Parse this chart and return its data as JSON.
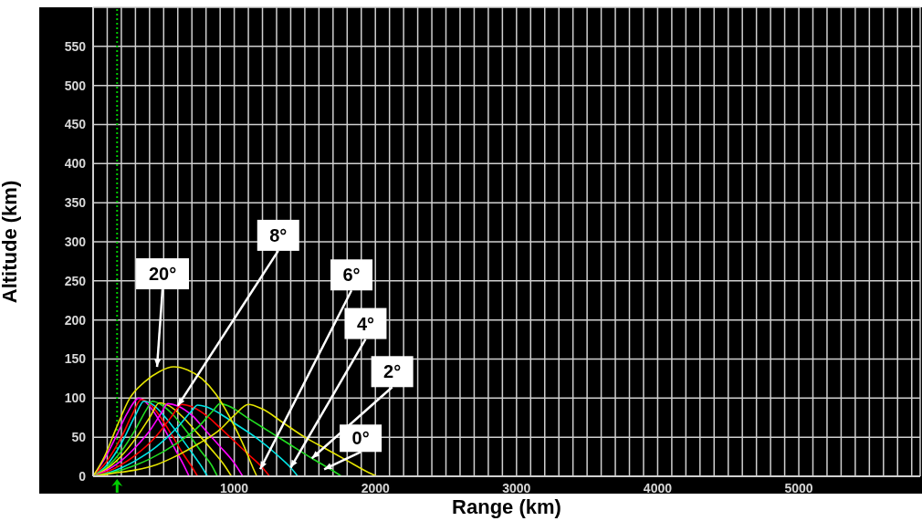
{
  "chart_data": {
    "type": "line",
    "xlabel": "Range (km)",
    "ylabel": "Altitude (km)",
    "xlim": [
      0,
      5860
    ],
    "ylim": [
      0,
      600
    ],
    "xticks": [
      {
        "value": 0,
        "label": null
      },
      {
        "value": 100,
        "label": null
      },
      {
        "value": 200,
        "label": null
      },
      {
        "value": 300,
        "label": null
      },
      {
        "value": 400,
        "label": null
      },
      {
        "value": 500,
        "label": null
      },
      {
        "value": 600,
        "label": null
      },
      {
        "value": 700,
        "label": null
      },
      {
        "value": 800,
        "label": null
      },
      {
        "value": 900,
        "label": null
      },
      1000,
      {
        "value": 1100,
        "label": null
      },
      {
        "value": 1200,
        "label": null
      },
      {
        "value": 1300,
        "label": null
      },
      {
        "value": 1400,
        "label": null
      },
      {
        "value": 1500,
        "label": null
      },
      {
        "value": 1600,
        "label": null
      },
      {
        "value": 1700,
        "label": null
      },
      {
        "value": 1800,
        "label": null
      },
      {
        "value": 1900,
        "label": null
      },
      2000,
      {
        "value": 2100,
        "label": null
      },
      {
        "value": 2200,
        "label": null
      },
      {
        "value": 2300,
        "label": null
      },
      {
        "value": 2400,
        "label": null
      },
      {
        "value": 2500,
        "label": null
      },
      {
        "value": 2600,
        "label": null
      },
      {
        "value": 2700,
        "label": null
      },
      {
        "value": 2800,
        "label": null
      },
      {
        "value": 2900,
        "label": null
      },
      3000,
      {
        "value": 3100,
        "label": null
      },
      {
        "value": 3200,
        "label": null
      },
      {
        "value": 3300,
        "label": null
      },
      {
        "value": 3400,
        "label": null
      },
      {
        "value": 3500,
        "label": null
      },
      {
        "value": 3600,
        "label": null
      },
      {
        "value": 3700,
        "label": null
      },
      {
        "value": 3800,
        "label": null
      },
      {
        "value": 3900,
        "label": null
      },
      4000,
      {
        "value": 4100,
        "label": null
      },
      {
        "value": 4200,
        "label": null
      },
      {
        "value": 4300,
        "label": null
      },
      {
        "value": 4400,
        "label": null
      },
      {
        "value": 4500,
        "label": null
      },
      {
        "value": 4600,
        "label": null
      },
      {
        "value": 4700,
        "label": null
      },
      {
        "value": 4800,
        "label": null
      },
      {
        "value": 4900,
        "label": null
      },
      5000,
      {
        "value": 5100,
        "label": null
      },
      {
        "value": 5200,
        "label": null
      },
      {
        "value": 5300,
        "label": null
      },
      {
        "value": 5400,
        "label": null
      },
      {
        "value": 5500,
        "label": null
      },
      {
        "value": 5600,
        "label": null
      },
      {
        "value": 5700,
        "label": null
      },
      {
        "value": 5800,
        "label": null
      }
    ],
    "yticks": [
      0,
      50,
      100,
      150,
      200,
      250,
      300,
      350,
      400,
      450,
      500,
      550
    ],
    "grid": true,
    "marker": "none",
    "line_style": "solid",
    "series": [
      {
        "color": "#ff00ff",
        "x": [
          0,
          80,
          160,
          240,
          300,
          322,
          360,
          420,
          500,
          580,
          640,
          680
        ],
        "values": [
          0,
          22,
          50,
          80,
          97,
          100,
          97,
          85,
          62,
          35,
          15,
          0
        ]
      },
      {
        "color": "#ff0000",
        "x": [
          0,
          100,
          200,
          280,
          340,
          400,
          480,
          560,
          640,
          700,
          740
        ],
        "values": [
          0,
          20,
          50,
          80,
          98,
          93,
          75,
          52,
          28,
          12,
          0
        ]
      },
      {
        "color": "#00e5e5",
        "x": [
          0,
          100,
          200,
          300,
          360,
          420,
          500,
          600,
          700,
          770,
          810
        ],
        "values": [
          0,
          15,
          42,
          78,
          96,
          92,
          78,
          55,
          30,
          12,
          0
        ]
      },
      {
        "color": "#22dd22",
        "x": [
          0,
          100,
          200,
          300,
          380,
          420,
          480,
          560,
          660,
          760,
          840,
          880
        ],
        "values": [
          0,
          12,
          32,
          60,
          86,
          96,
          92,
          80,
          58,
          33,
          14,
          0
        ]
      },
      {
        "color": "#e5e500",
        "x": [
          0,
          100,
          200,
          300,
          400,
          470,
          540,
          640,
          740,
          840,
          930,
          980
        ],
        "values": [
          0,
          10,
          26,
          48,
          75,
          94,
          90,
          75,
          55,
          34,
          14,
          0
        ]
      },
      {
        "color": "#ff00ff",
        "x": [
          0,
          100,
          200,
          300,
          400,
          480,
          530,
          600,
          700,
          800,
          900,
          1000,
          1060
        ],
        "values": [
          0,
          8,
          20,
          37,
          58,
          80,
          93,
          90,
          78,
          58,
          38,
          17,
          0
        ]
      },
      {
        "color": "#ff0000",
        "x": [
          0,
          150,
          300,
          450,
          550,
          630,
          700,
          800,
          900,
          1000,
          1100,
          1200,
          1250
        ],
        "values": [
          0,
          10,
          27,
          52,
          75,
          92,
          89,
          78,
          62,
          45,
          28,
          11,
          0
        ]
      },
      {
        "color": "#00e5e5",
        "x": [
          0,
          150,
          300,
          450,
          600,
          700,
          740,
          800,
          900,
          1000,
          1150,
          1300,
          1400,
          1450
        ],
        "values": [
          0,
          7,
          20,
          38,
          63,
          84,
          91,
          89,
          80,
          68,
          50,
          28,
          11,
          0
        ]
      },
      {
        "color": "#22dd22",
        "x": [
          0,
          200,
          400,
          600,
          750,
          850,
          900,
          960,
          1100,
          1250,
          1400,
          1550,
          1700,
          1760
        ],
        "values": [
          0,
          8,
          22,
          43,
          64,
          84,
          93,
          90,
          74,
          57,
          40,
          23,
          7,
          0
        ]
      },
      {
        "color": "#e5e500",
        "x": [
          0,
          150,
          300,
          450,
          600,
          750,
          900,
          1000,
          1100,
          1200,
          1350,
          1500,
          1650,
          1800,
          1950,
          2010
        ],
        "values": [
          0,
          4,
          8,
          15,
          27,
          42,
          60,
          78,
          92,
          86,
          68,
          50,
          35,
          20,
          5,
          0
        ]
      },
      {
        "color": "#e5e500",
        "x": [
          0,
          80,
          160,
          260,
          360,
          470,
          570,
          670,
          770,
          870,
          970,
          1070,
          1130,
          1160
        ],
        "values": [
          0,
          25,
          60,
          100,
          120,
          134,
          140,
          136,
          125,
          105,
          75,
          38,
          12,
          0
        ]
      }
    ],
    "ref_lines": [
      {
        "axis": "x",
        "value": 170,
        "color": "#00cc00",
        "line_style": "dotted"
      }
    ],
    "annotations": [
      {
        "text": "20°",
        "x": 453,
        "y": 140
      },
      {
        "text": "8°",
        "x": 600,
        "y": 90
      },
      {
        "text": "6°",
        "x": 1184,
        "y": 9
      },
      {
        "text": "4°",
        "x": 1400,
        "y": 11
      },
      {
        "text": "2°",
        "x": 1550,
        "y": 23
      },
      {
        "text": "0°",
        "x": 1637,
        "y": 9
      }
    ]
  }
}
